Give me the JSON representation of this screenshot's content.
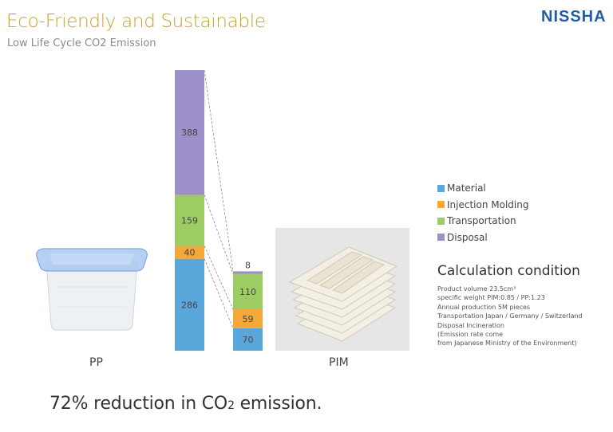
{
  "header": {
    "title": "Eco-Friendly and Sustainable",
    "subtitle": "Low Life Cycle CO2 Emission",
    "logo_text": "NISSHA"
  },
  "chart_data": {
    "type": "bar",
    "stacked": true,
    "categories": [
      "PP",
      "PIM"
    ],
    "series": [
      {
        "name": "Material",
        "color": "#5aa7dc",
        "values": [
          286,
          70
        ]
      },
      {
        "name": "Injection Molding",
        "color": "#f4a83a",
        "values": [
          40,
          59
        ]
      },
      {
        "name": "Transportation",
        "color": "#9ccc63",
        "values": [
          159,
          110
        ]
      },
      {
        "name": "Disposal",
        "color": "#9d8fc8",
        "values": [
          388,
          8
        ]
      }
    ],
    "data_labels": [
      [
        "286",
        "40",
        "159",
        "388"
      ],
      [
        "70",
        "59",
        "110",
        "8"
      ]
    ],
    "title": "",
    "xlabel": "",
    "ylabel": "",
    "legend": "right"
  },
  "products": {
    "pp_label": "PP",
    "pim_label": "PIM"
  },
  "legend": {
    "items": [
      "Material",
      "Injection Molding",
      "Transportation",
      "Disposal"
    ]
  },
  "calculation": {
    "title": "Calculation condition",
    "lines": [
      "Product volume 23.5cm³",
      "specific weight  PIM:0.85 / PP:1.23",
      "Annual production  5M pieces",
      "Transportation  Japan / Germany / Switzerland",
      "Disposal  Incineration",
      "(Emission rate come",
      "from Japanese Ministry of the Environment)"
    ]
  },
  "conclusion": {
    "prefix": "72% reduction in CO",
    "subscript": "2",
    "suffix": " emission."
  }
}
